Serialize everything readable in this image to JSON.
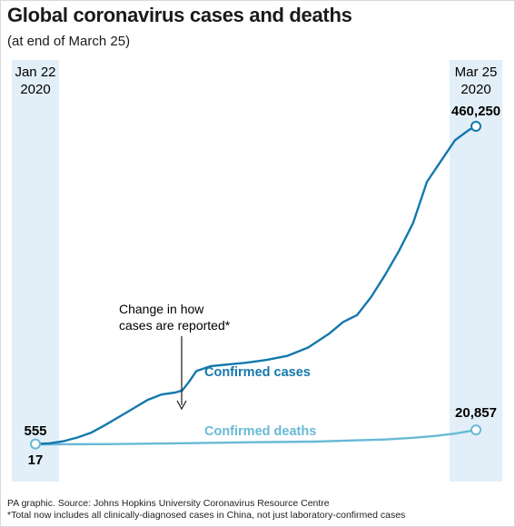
{
  "title": "Global coronavirus cases and deaths",
  "subtitle": "(at end of March 25)",
  "colors": {
    "cases": "#1478ad",
    "deaths": "#68b9d6",
    "band": "#e2eff8",
    "text": "#1a1a1a"
  },
  "chart_data": {
    "type": "line",
    "x_start": {
      "line1": "Jan 22",
      "line2": "2020"
    },
    "x_end": {
      "line1": "Mar 25",
      "line2": "2020"
    },
    "ylim": [
      0,
      460250
    ],
    "series": [
      {
        "name": "Confirmed cases",
        "start_value": 555,
        "end_value": 460250,
        "start_label": "555",
        "end_label": "460,250",
        "x": [
          0,
          2,
          4,
          6,
          8,
          10,
          12,
          14,
          16,
          18,
          20,
          21,
          22,
          23,
          25,
          27,
          30,
          33,
          36,
          39,
          42,
          44,
          46,
          48,
          50,
          52,
          54,
          56,
          58,
          60,
          62,
          63
        ],
        "y": [
          555,
          1500,
          4500,
          9800,
          17000,
          28000,
          40000,
          52000,
          64000,
          72000,
          75000,
          78000,
          91000,
          106000,
          113000,
          115000,
          118000,
          122000,
          128000,
          140000,
          160000,
          177000,
          187000,
          213000,
          245000,
          280000,
          320000,
          380000,
          410000,
          440000,
          455000,
          460250
        ]
      },
      {
        "name": "Confirmed deaths",
        "start_value": 17,
        "end_value": 20857,
        "start_label": "17",
        "end_label": "20,857",
        "x": [
          0,
          10,
          20,
          30,
          40,
          45,
          50,
          54,
          57,
          60,
          62,
          63
        ],
        "y": [
          17,
          200,
          1500,
          2900,
          4000,
          5500,
          7000,
          9500,
          12000,
          15500,
          19000,
          20857
        ]
      }
    ],
    "annotation": {
      "line1": "Change in how",
      "line2": "cases are reported*",
      "x": 20
    }
  },
  "footer": {
    "source": "PA graphic. Source: Johns Hopkins University Coronavirus Resource Centre",
    "note": "*Total now includes all clinically-diagnosed cases in China, not just laboratory-confirmed cases"
  }
}
